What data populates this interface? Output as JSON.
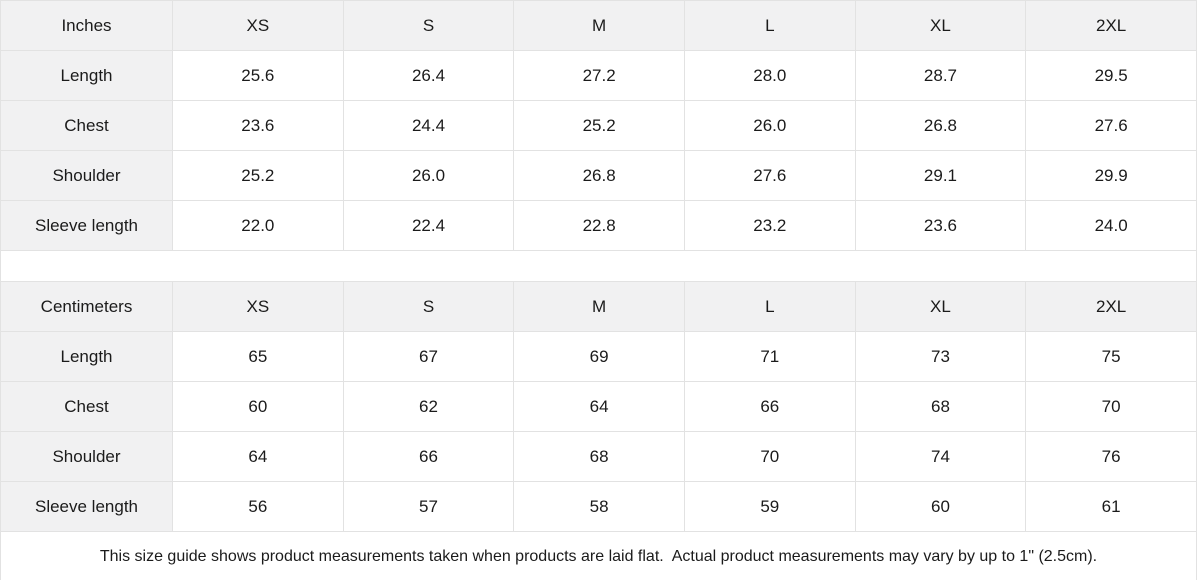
{
  "inches": {
    "unit_label": "Inches",
    "headers": [
      "XS",
      "S",
      "M",
      "L",
      "XL",
      "2XL"
    ],
    "rows": [
      {
        "label": "Length",
        "values": [
          "25.6",
          "26.4",
          "27.2",
          "28.0",
          "28.7",
          "29.5"
        ]
      },
      {
        "label": "Chest",
        "values": [
          "23.6",
          "24.4",
          "25.2",
          "26.0",
          "26.8",
          "27.6"
        ]
      },
      {
        "label": "Shoulder",
        "values": [
          "25.2",
          "26.0",
          "26.8",
          "27.6",
          "29.1",
          "29.9"
        ]
      },
      {
        "label": "Sleeve length",
        "values": [
          "22.0",
          "22.4",
          "22.8",
          "23.2",
          "23.6",
          "24.0"
        ]
      }
    ]
  },
  "centimeters": {
    "unit_label": "Centimeters",
    "headers": [
      "XS",
      "S",
      "M",
      "L",
      "XL",
      "2XL"
    ],
    "rows": [
      {
        "label": "Length",
        "values": [
          "65",
          "67",
          "69",
          "71",
          "73",
          "75"
        ]
      },
      {
        "label": "Chest",
        "values": [
          "60",
          "62",
          "64",
          "66",
          "68",
          "70"
        ]
      },
      {
        "label": "Shoulder",
        "values": [
          "64",
          "66",
          "68",
          "70",
          "74",
          "76"
        ]
      },
      {
        "label": "Sleeve length",
        "values": [
          "56",
          "57",
          "58",
          "59",
          "60",
          "61"
        ]
      }
    ]
  },
  "footnote": "This size guide shows product measurements taken when products are laid flat.  Actual product measurements may vary by up to 1\" (2.5cm).",
  "colors": {
    "header_bg": "#f1f1f2",
    "row_label_bg": "#f1f1f2",
    "border": "#e2e2e2",
    "text": "#1b1b1b",
    "background": "#ffffff"
  }
}
